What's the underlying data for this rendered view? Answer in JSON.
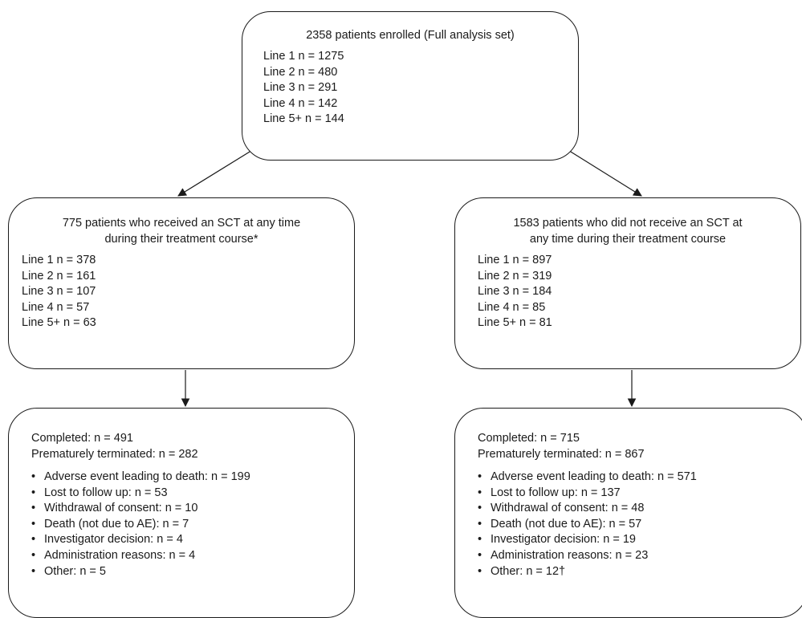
{
  "top_box": {
    "heading": "2358 patients enrolled (Full analysis set)",
    "lines": [
      "Line 1 n = 1275",
      "Line 2 n = 480",
      "Line 3 n = 291",
      "Line 4 n = 142",
      "Line 5+ n = 144"
    ]
  },
  "mid_left_box": {
    "heading_1": "775 patients who received an SCT at any time",
    "heading_2": "during their treatment course*",
    "lines": [
      "Line 1 n = 378",
      "Line 2 n = 161",
      "Line 3 n = 107",
      "Line 4 n = 57",
      "Line 5+ n = 63"
    ]
  },
  "mid_right_box": {
    "heading_1": "1583 patients who did not receive an SCT at",
    "heading_2": "any time during their treatment course",
    "lines": [
      "Line 1 n = 897",
      "Line 2 n = 319",
      "Line 3 n = 184",
      "Line 4 n = 85",
      "Line 5+ n = 81"
    ]
  },
  "bot_left_box": {
    "completed": "Completed: n = 491",
    "terminated": "Prematurely terminated: n = 282",
    "reasons": [
      "Adverse event leading to death: n = 199",
      "Lost to follow up: n = 53",
      "Withdrawal of consent: n = 10",
      "Death (not due to AE): n = 7",
      "Investigator decision: n = 4",
      "Administration reasons: n = 4",
      "Other: n = 5"
    ]
  },
  "bot_right_box": {
    "completed": "Completed: n = 715",
    "terminated": "Prematurely terminated: n = 867",
    "reasons": [
      "Adverse event leading to death: n = 571",
      "Lost to follow up: n = 137",
      "Withdrawal of consent: n = 48",
      "Death (not due to AE): n = 57",
      "Investigator decision: n = 19",
      "Administration reasons: n = 23",
      "Other: n = 12†"
    ]
  },
  "colors": {
    "stroke": "#1a1a1a",
    "background": "#ffffff"
  }
}
